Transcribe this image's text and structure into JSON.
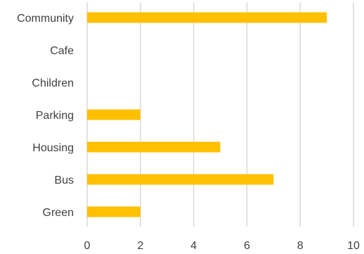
{
  "chart_data": {
    "type": "bar",
    "orientation": "horizontal",
    "categories": [
      "Community",
      "Cafe",
      "Children",
      "Parking",
      "Housing",
      "Bus",
      "Green"
    ],
    "values": [
      9,
      0,
      0,
      2,
      5,
      7,
      2
    ],
    "xlim": [
      0,
      10
    ],
    "xticks": [
      "0",
      "2",
      "4",
      "6",
      "8",
      "10"
    ],
    "xtick_values": [
      0,
      2,
      4,
      6,
      8,
      10
    ],
    "grid": true,
    "legend": "none",
    "bar_color": "#FFC000",
    "title": "",
    "xlabel": "",
    "ylabel": ""
  }
}
